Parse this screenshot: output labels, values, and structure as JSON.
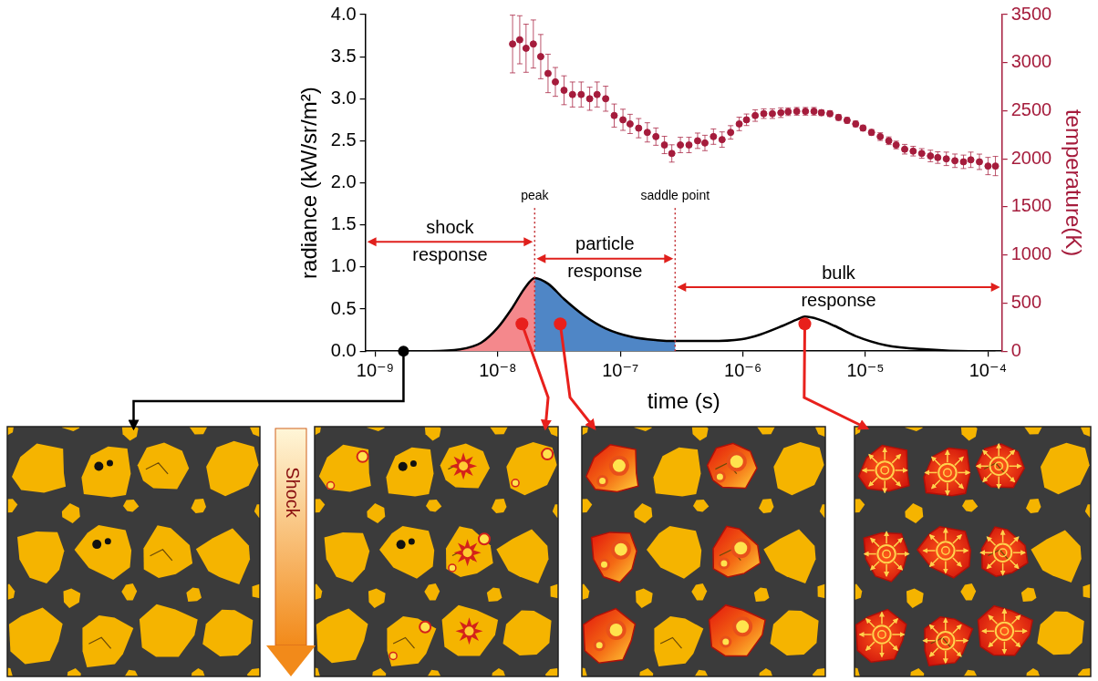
{
  "chart_data": {
    "type": "line",
    "x_label": "time (s)",
    "y_label": "radiance (kW/sr/m²)",
    "y2_label": "temperature(K)",
    "log": "x",
    "grid": false,
    "xlim": [
      8.3e-10,
      0.00013
    ],
    "xticks": [
      {
        "value": 1e-09,
        "label": "10⁻⁹"
      },
      {
        "value": 1e-08,
        "label": "10⁻⁸"
      },
      {
        "value": 1e-07,
        "label": "10⁻⁷"
      },
      {
        "value": 1e-06,
        "label": "10⁻⁶"
      },
      {
        "value": 1e-05,
        "label": "10⁻⁵"
      },
      {
        "value": 0.0001,
        "label": "10⁻⁴"
      }
    ],
    "ylim": [
      0,
      4
    ],
    "yticks": [
      {
        "value": 0,
        "label": "0.0"
      },
      {
        "value": 0.5,
        "label": "0.5"
      },
      {
        "value": 1,
        "label": "1.0"
      },
      {
        "value": 1.5,
        "label": "1.5"
      },
      {
        "value": 2,
        "label": "2.0"
      },
      {
        "value": 2.5,
        "label": "2.5"
      },
      {
        "value": 3,
        "label": "3.0"
      },
      {
        "value": 3.5,
        "label": "3.5"
      },
      {
        "value": 4,
        "label": "4.0"
      }
    ],
    "y2lim": [
      0,
      3500
    ],
    "y2ticks": [
      0,
      500,
      1000,
      1500,
      2000,
      2500,
      3000,
      3500
    ],
    "series": [
      {
        "color": "#000000",
        "marker": "none",
        "line_style": "solid",
        "x": [
          1.7e-09,
          2.8e-09,
          4.9e-09,
          7.3e-09,
          1e-08,
          1.32e-08,
          1.66e-08,
          2e-08,
          2.58e-08,
          3.47e-08,
          5.1e-08,
          7.6e-08,
          1.24e-07,
          2e-07,
          2.8e-07,
          5.3e-07,
          9.6e-07,
          1.4e-06,
          2.1e-06,
          2.8e-06,
          3.2e-06,
          4.1e-06,
          5.6e-06,
          8.3e-06,
          1.47e-05,
          3.2e-05,
          7e-05,
          0.000115
        ],
        "values": [
          0,
          0,
          0.02,
          0.1,
          0.28,
          0.52,
          0.75,
          0.87,
          0.8,
          0.62,
          0.42,
          0.27,
          0.17,
          0.13,
          0.12,
          0.12,
          0.14,
          0.2,
          0.3,
          0.38,
          0.41,
          0.38,
          0.3,
          0.18,
          0.07,
          0.02,
          0,
          0
        ]
      },
      {
        "type": "scatter",
        "axis": "y2",
        "color": "#a51c3c",
        "marker": "circle",
        "x": [
          1.32e-08,
          1.51e-08,
          1.7e-08,
          1.95e-08,
          2.24e-08,
          2.57e-08,
          2.95e-08,
          3.47e-08,
          4.07e-08,
          4.79e-08,
          5.62e-08,
          6.46e-08,
          7.59e-08,
          8.91e-08,
          1.05e-07,
          1.2e-07,
          1.41e-07,
          1.66e-07,
          1.95e-07,
          2.29e-07,
          2.63e-07,
          3.09e-07,
          3.63e-07,
          4.27e-07,
          4.9e-07,
          5.75e-07,
          6.76e-07,
          7.94e-07,
          9.33e-07,
          1.07e-06,
          1.26e-06,
          1.48e-06,
          1.74e-06,
          2.04e-06,
          2.34e-06,
          2.75e-06,
          3.24e-06,
          3.8e-06,
          4.37e-06,
          5.13e-06,
          6.03e-06,
          7.08e-06,
          8.32e-06,
          9.55e-06,
          1.12e-05,
          1.32e-05,
          1.55e-05,
          1.78e-05,
          2.09e-05,
          2.45e-05,
          2.88e-05,
          3.39e-05,
          3.89e-05,
          4.57e-05,
          5.37e-05,
          6.31e-05,
          7.24e-05,
          8.51e-05,
          0.0001,
          0.000115
        ],
        "values": [
          3194,
          3238,
          3150,
          3194,
          3063,
          2888,
          2800,
          2713,
          2669,
          2669,
          2625,
          2669,
          2625,
          2450,
          2406,
          2363,
          2319,
          2275,
          2231,
          2144,
          2056,
          2144,
          2144,
          2188,
          2165,
          2231,
          2200,
          2275,
          2363,
          2406,
          2450,
          2470,
          2470,
          2480,
          2490,
          2494,
          2494,
          2494,
          2480,
          2470,
          2430,
          2400,
          2363,
          2320,
          2275,
          2231,
          2188,
          2144,
          2100,
          2080,
          2056,
          2030,
          2013,
          2000,
          1980,
          1969,
          1990,
          1969,
          1925,
          1925
        ],
        "errors": [
          300,
          250,
          250,
          250,
          230,
          200,
          150,
          150,
          130,
          130,
          120,
          130,
          130,
          120,
          110,
          100,
          100,
          100,
          90,
          90,
          90,
          80,
          80,
          80,
          80,
          80,
          80,
          70,
          70,
          60,
          60,
          50,
          50,
          50,
          40,
          40,
          40,
          40,
          30,
          30,
          30,
          30,
          30,
          30,
          30,
          40,
          40,
          40,
          50,
          50,
          50,
          60,
          60,
          70,
          70,
          70,
          80,
          80,
          90,
          100
        ]
      }
    ],
    "regions": [
      {
        "label": "shock response",
        "from": 8.3e-10,
        "to": 2e-08,
        "y": 1.3,
        "color": "#f4888c"
      },
      {
        "label": "particle response",
        "from": 2e-08,
        "to": 2.8e-07,
        "y": 1.1,
        "color": "#4f86c6"
      },
      {
        "label": "bulk response",
        "from": 2.8e-07,
        "to": 0.00013,
        "y": 0.76
      }
    ],
    "markers": [
      {
        "x": 2e-08,
        "label": "peak"
      },
      {
        "x": 2.8e-07,
        "label": "saddle point"
      }
    ]
  },
  "diagram": {
    "arrow_label": "Shock"
  }
}
